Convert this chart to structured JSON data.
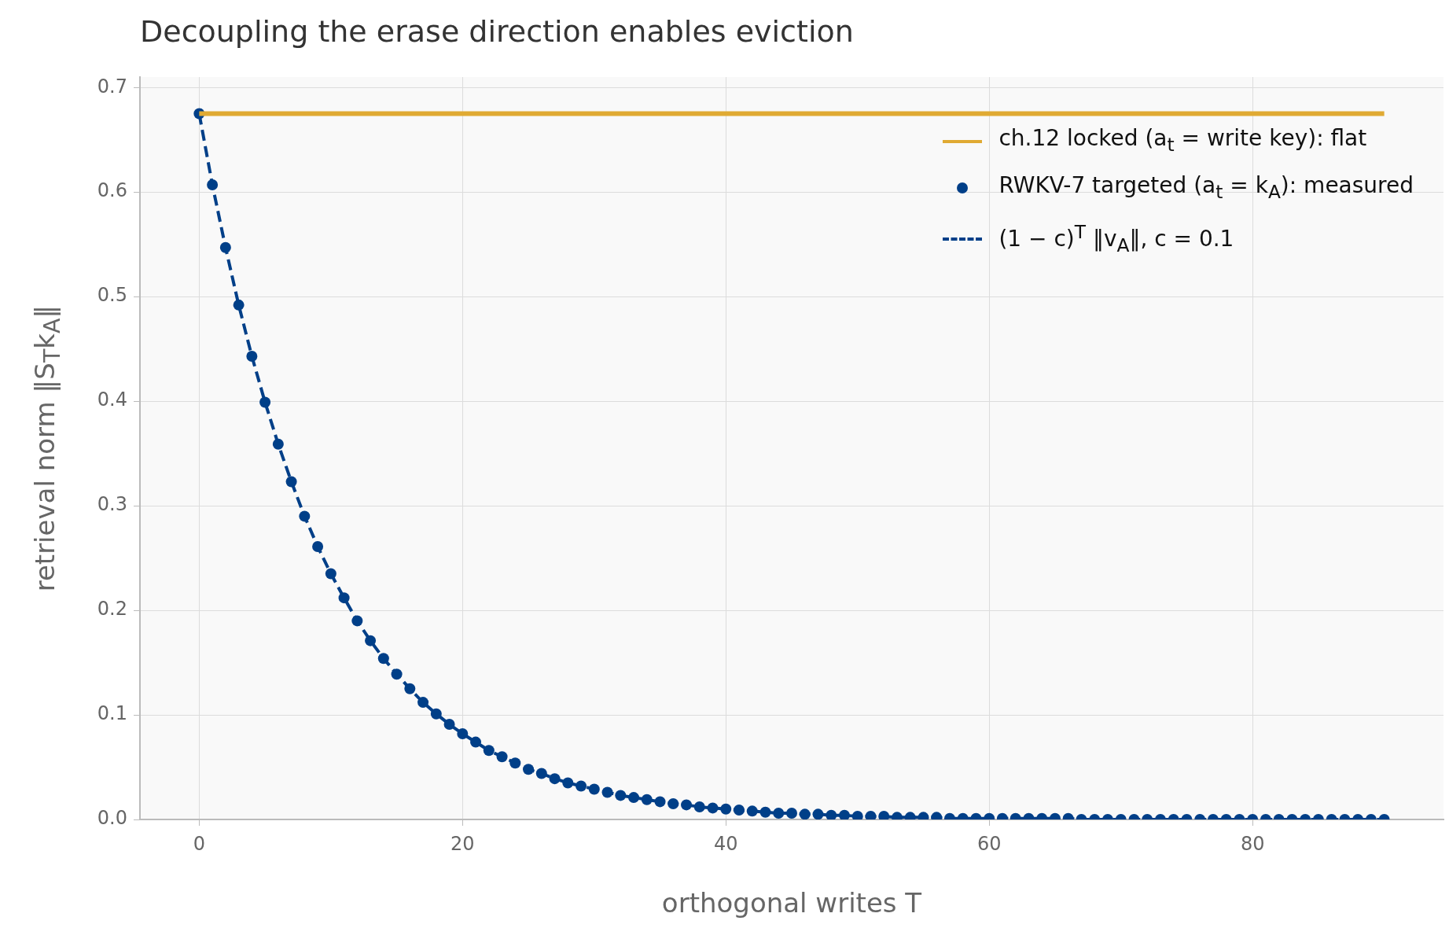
{
  "chart_data": {
    "type": "scatter",
    "title": "Decoupling the erase direction enables eviction",
    "xlabel": "orthogonal writes T",
    "ylabel": "retrieval norm ‖S$_{T}$k$_{A}$‖",
    "xlim": [
      -4.5,
      94.5
    ],
    "xticks": [
      0,
      20,
      40,
      60,
      80
    ],
    "ylim": [
      0,
      0.71
    ],
    "yticks": [
      {
        "value": 0,
        "label": "0.0"
      },
      {
        "value": 0.1,
        "label": "0.1"
      },
      {
        "value": 0.2,
        "label": "0.2"
      },
      {
        "value": 0.3,
        "label": "0.3"
      },
      {
        "value": 0.4,
        "label": "0.4"
      },
      {
        "value": 0.5,
        "label": "0.5"
      },
      {
        "value": 0.6,
        "label": "0.6"
      },
      {
        "value": 0.7,
        "label": "0.7"
      }
    ],
    "grid": true,
    "legend": "top right",
    "series": [
      {
        "name": "ch.12 locked (a$_{t}$ = write key): flat",
        "type": "line",
        "line_style": "solid",
        "marker": "none",
        "color": "#e0aa33",
        "x": [
          0,
          90
        ],
        "values": [
          0.675,
          0.675
        ]
      },
      {
        "name": "RWKV-7 targeted (a$_{t}$ = k$_{A}$): measured",
        "marker": "circle",
        "color": "#003f88",
        "x": [
          0,
          1,
          2,
          3,
          4,
          5,
          6,
          7,
          8,
          9,
          10,
          11,
          12,
          13,
          14,
          15,
          16,
          17,
          18,
          19,
          20,
          21,
          22,
          23,
          24,
          25,
          26,
          27,
          28,
          29,
          30,
          31,
          32,
          33,
          34,
          35,
          36,
          37,
          38,
          39,
          40,
          41,
          42,
          43,
          44,
          45,
          46,
          47,
          48,
          49,
          50,
          51,
          52,
          53,
          54,
          55,
          56,
          57,
          58,
          59,
          60,
          61,
          62,
          63,
          64,
          65,
          66,
          67,
          68,
          69,
          70,
          71,
          72,
          73,
          74,
          75,
          76,
          77,
          78,
          79,
          80,
          81,
          82,
          83,
          84,
          85,
          86,
          87,
          88,
          89,
          90
        ],
        "values": [
          0.675,
          0.607,
          0.547,
          0.492,
          0.443,
          0.399,
          0.359,
          0.323,
          0.29,
          0.261,
          0.235,
          0.212,
          0.19,
          0.171,
          0.154,
          0.139,
          0.125,
          0.112,
          0.101,
          0.091,
          0.082,
          0.074,
          0.066,
          0.06,
          0.054,
          0.048,
          0.044,
          0.039,
          0.035,
          0.032,
          0.029,
          0.026,
          0.023,
          0.021,
          0.019,
          0.017,
          0.015,
          0.014,
          0.012,
          0.011,
          0.01,
          0.009,
          0.008,
          0.007,
          0.006,
          0.006,
          0.005,
          0.005,
          0.004,
          0.004,
          0.003,
          0.003,
          0.003,
          0.002,
          0.002,
          0.002,
          0.002,
          0.001,
          0.001,
          0.001,
          0.001,
          0.001,
          0.001,
          0.001,
          0.001,
          0.001,
          0.001,
          0,
          0,
          0,
          0,
          0,
          0,
          0,
          0,
          0,
          0,
          0,
          0,
          0,
          0,
          0,
          0,
          0,
          0,
          0,
          0,
          0,
          0,
          0,
          0
        ]
      },
      {
        "name": "(1 − c)$^{T}$ ‖v$_{A}$‖, c = 0.1",
        "type": "line",
        "line_style": "dashed",
        "marker": "none",
        "color": "#003f88",
        "x": [
          0,
          1,
          2,
          3,
          4,
          5,
          6,
          7,
          8,
          9,
          10,
          11,
          12,
          13,
          14,
          15,
          16,
          17,
          18,
          19,
          20,
          21,
          22,
          23,
          24,
          25,
          26,
          27,
          28,
          29,
          30,
          31,
          32,
          33,
          34,
          35,
          36,
          37,
          38,
          39,
          40,
          41,
          42,
          43,
          44,
          45,
          46,
          47,
          48,
          49,
          50,
          51,
          52,
          53,
          54,
          55,
          56,
          57,
          58,
          59,
          60,
          61,
          62,
          63,
          64,
          65,
          66,
          67,
          68,
          69,
          70,
          71,
          72,
          73,
          74,
          75,
          76,
          77,
          78,
          79,
          80,
          81,
          82,
          83,
          84,
          85,
          86,
          87,
          88,
          89,
          90
        ],
        "values": [
          0.675,
          0.607,
          0.547,
          0.492,
          0.443,
          0.399,
          0.359,
          0.323,
          0.29,
          0.261,
          0.235,
          0.212,
          0.19,
          0.171,
          0.154,
          0.139,
          0.125,
          0.112,
          0.101,
          0.091,
          0.082,
          0.074,
          0.066,
          0.06,
          0.054,
          0.048,
          0.044,
          0.039,
          0.035,
          0.032,
          0.029,
          0.026,
          0.023,
          0.021,
          0.019,
          0.017,
          0.015,
          0.014,
          0.012,
          0.011,
          0.01,
          0.009,
          0.008,
          0.007,
          0.006,
          0.006,
          0.005,
          0.005,
          0.004,
          0.004,
          0.003,
          0.003,
          0.003,
          0.002,
          0.002,
          0.002,
          0.002,
          0.001,
          0.001,
          0.001,
          0.001,
          0.001,
          0.001,
          0.001,
          0.001,
          0.001,
          0.001,
          0,
          0,
          0,
          0,
          0,
          0,
          0,
          0,
          0,
          0,
          0,
          0,
          0,
          0,
          0,
          0,
          0,
          0,
          0,
          0,
          0,
          0,
          0,
          0
        ]
      }
    ]
  }
}
